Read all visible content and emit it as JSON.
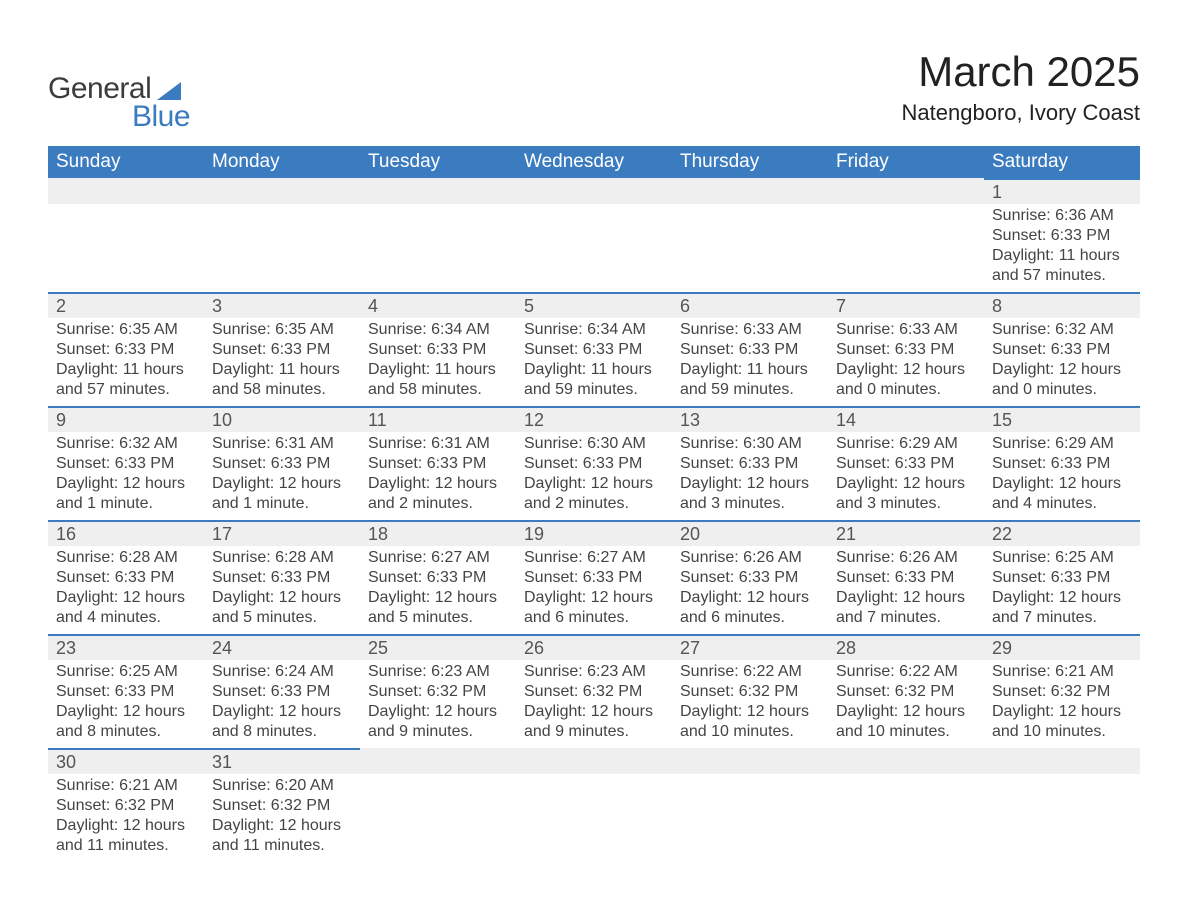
{
  "logo": {
    "word1": "General",
    "word2": "Blue"
  },
  "title": "March 2025",
  "location": "Natengboro, Ivory Coast",
  "colors": {
    "header_bg": "#3b7bbf",
    "header_text": "#ffffff",
    "dayhead_bg": "#efefef",
    "row_border": "#3b7bbf",
    "text": "#3c3c3c",
    "page_bg": "#ffffff"
  },
  "typography": {
    "title_fontsize": 42,
    "location_fontsize": 22,
    "dayhead_fontsize": 18,
    "body_fontsize": 16,
    "header_fontsize": 19
  },
  "daynames": [
    "Sunday",
    "Monday",
    "Tuesday",
    "Wednesday",
    "Thursday",
    "Friday",
    "Saturday"
  ],
  "weeks": [
    [
      null,
      null,
      null,
      null,
      null,
      null,
      {
        "n": "1",
        "sunrise": "Sunrise: 6:36 AM",
        "sunset": "Sunset: 6:33 PM",
        "daylight": "Daylight: 11 hours and 57 minutes."
      }
    ],
    [
      {
        "n": "2",
        "sunrise": "Sunrise: 6:35 AM",
        "sunset": "Sunset: 6:33 PM",
        "daylight": "Daylight: 11 hours and 57 minutes."
      },
      {
        "n": "3",
        "sunrise": "Sunrise: 6:35 AM",
        "sunset": "Sunset: 6:33 PM",
        "daylight": "Daylight: 11 hours and 58 minutes."
      },
      {
        "n": "4",
        "sunrise": "Sunrise: 6:34 AM",
        "sunset": "Sunset: 6:33 PM",
        "daylight": "Daylight: 11 hours and 58 minutes."
      },
      {
        "n": "5",
        "sunrise": "Sunrise: 6:34 AM",
        "sunset": "Sunset: 6:33 PM",
        "daylight": "Daylight: 11 hours and 59 minutes."
      },
      {
        "n": "6",
        "sunrise": "Sunrise: 6:33 AM",
        "sunset": "Sunset: 6:33 PM",
        "daylight": "Daylight: 11 hours and 59 minutes."
      },
      {
        "n": "7",
        "sunrise": "Sunrise: 6:33 AM",
        "sunset": "Sunset: 6:33 PM",
        "daylight": "Daylight: 12 hours and 0 minutes."
      },
      {
        "n": "8",
        "sunrise": "Sunrise: 6:32 AM",
        "sunset": "Sunset: 6:33 PM",
        "daylight": "Daylight: 12 hours and 0 minutes."
      }
    ],
    [
      {
        "n": "9",
        "sunrise": "Sunrise: 6:32 AM",
        "sunset": "Sunset: 6:33 PM",
        "daylight": "Daylight: 12 hours and 1 minute."
      },
      {
        "n": "10",
        "sunrise": "Sunrise: 6:31 AM",
        "sunset": "Sunset: 6:33 PM",
        "daylight": "Daylight: 12 hours and 1 minute."
      },
      {
        "n": "11",
        "sunrise": "Sunrise: 6:31 AM",
        "sunset": "Sunset: 6:33 PM",
        "daylight": "Daylight: 12 hours and 2 minutes."
      },
      {
        "n": "12",
        "sunrise": "Sunrise: 6:30 AM",
        "sunset": "Sunset: 6:33 PM",
        "daylight": "Daylight: 12 hours and 2 minutes."
      },
      {
        "n": "13",
        "sunrise": "Sunrise: 6:30 AM",
        "sunset": "Sunset: 6:33 PM",
        "daylight": "Daylight: 12 hours and 3 minutes."
      },
      {
        "n": "14",
        "sunrise": "Sunrise: 6:29 AM",
        "sunset": "Sunset: 6:33 PM",
        "daylight": "Daylight: 12 hours and 3 minutes."
      },
      {
        "n": "15",
        "sunrise": "Sunrise: 6:29 AM",
        "sunset": "Sunset: 6:33 PM",
        "daylight": "Daylight: 12 hours and 4 minutes."
      }
    ],
    [
      {
        "n": "16",
        "sunrise": "Sunrise: 6:28 AM",
        "sunset": "Sunset: 6:33 PM",
        "daylight": "Daylight: 12 hours and 4 minutes."
      },
      {
        "n": "17",
        "sunrise": "Sunrise: 6:28 AM",
        "sunset": "Sunset: 6:33 PM",
        "daylight": "Daylight: 12 hours and 5 minutes."
      },
      {
        "n": "18",
        "sunrise": "Sunrise: 6:27 AM",
        "sunset": "Sunset: 6:33 PM",
        "daylight": "Daylight: 12 hours and 5 minutes."
      },
      {
        "n": "19",
        "sunrise": "Sunrise: 6:27 AM",
        "sunset": "Sunset: 6:33 PM",
        "daylight": "Daylight: 12 hours and 6 minutes."
      },
      {
        "n": "20",
        "sunrise": "Sunrise: 6:26 AM",
        "sunset": "Sunset: 6:33 PM",
        "daylight": "Daylight: 12 hours and 6 minutes."
      },
      {
        "n": "21",
        "sunrise": "Sunrise: 6:26 AM",
        "sunset": "Sunset: 6:33 PM",
        "daylight": "Daylight: 12 hours and 7 minutes."
      },
      {
        "n": "22",
        "sunrise": "Sunrise: 6:25 AM",
        "sunset": "Sunset: 6:33 PM",
        "daylight": "Daylight: 12 hours and 7 minutes."
      }
    ],
    [
      {
        "n": "23",
        "sunrise": "Sunrise: 6:25 AM",
        "sunset": "Sunset: 6:33 PM",
        "daylight": "Daylight: 12 hours and 8 minutes."
      },
      {
        "n": "24",
        "sunrise": "Sunrise: 6:24 AM",
        "sunset": "Sunset: 6:33 PM",
        "daylight": "Daylight: 12 hours and 8 minutes."
      },
      {
        "n": "25",
        "sunrise": "Sunrise: 6:23 AM",
        "sunset": "Sunset: 6:32 PM",
        "daylight": "Daylight: 12 hours and 9 minutes."
      },
      {
        "n": "26",
        "sunrise": "Sunrise: 6:23 AM",
        "sunset": "Sunset: 6:32 PM",
        "daylight": "Daylight: 12 hours and 9 minutes."
      },
      {
        "n": "27",
        "sunrise": "Sunrise: 6:22 AM",
        "sunset": "Sunset: 6:32 PM",
        "daylight": "Daylight: 12 hours and 10 minutes."
      },
      {
        "n": "28",
        "sunrise": "Sunrise: 6:22 AM",
        "sunset": "Sunset: 6:32 PM",
        "daylight": "Daylight: 12 hours and 10 minutes."
      },
      {
        "n": "29",
        "sunrise": "Sunrise: 6:21 AM",
        "sunset": "Sunset: 6:32 PM",
        "daylight": "Daylight: 12 hours and 10 minutes."
      }
    ],
    [
      {
        "n": "30",
        "sunrise": "Sunrise: 6:21 AM",
        "sunset": "Sunset: 6:32 PM",
        "daylight": "Daylight: 12 hours and 11 minutes."
      },
      {
        "n": "31",
        "sunrise": "Sunrise: 6:20 AM",
        "sunset": "Sunset: 6:32 PM",
        "daylight": "Daylight: 12 hours and 11 minutes."
      },
      null,
      null,
      null,
      null,
      null
    ]
  ]
}
